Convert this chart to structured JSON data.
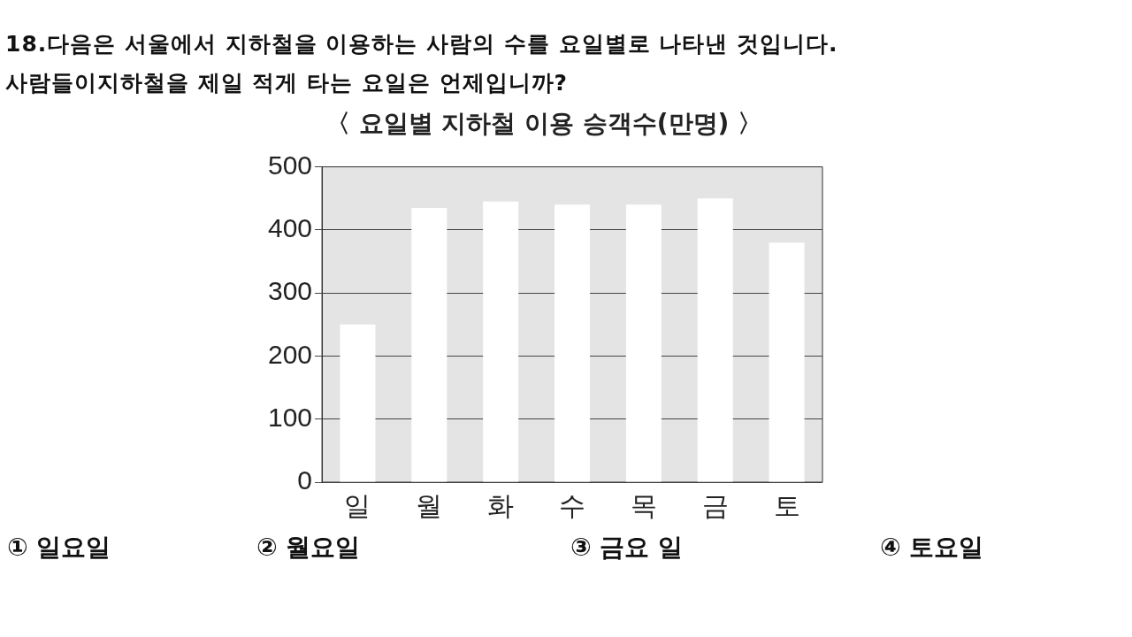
{
  "chart_data": {
    "type": "bar",
    "title": "〈 요일별 지하철 이용 승객수(만명) 〉",
    "categories": [
      "일",
      "월",
      "화",
      "수",
      "목",
      "금",
      "토"
    ],
    "values": [
      250,
      435,
      445,
      440,
      440,
      450,
      380
    ],
    "color": "#ffffff",
    "ylim": [
      0,
      500
    ],
    "yticks": [
      0,
      100,
      200,
      300,
      400,
      500
    ],
    "grid": "y",
    "legend": false,
    "annotations": [
      "18.다음은 서울에서 지하철을 이용하는 사람의 수를 요일별로 나타낸 것입니다.",
      "사람들이지하철을 제일 적게 타는 요일은 언제입니까?",
      "① 일요일",
      "② 월요일",
      "③ 금요 일",
      "④ 토요일"
    ]
  }
}
